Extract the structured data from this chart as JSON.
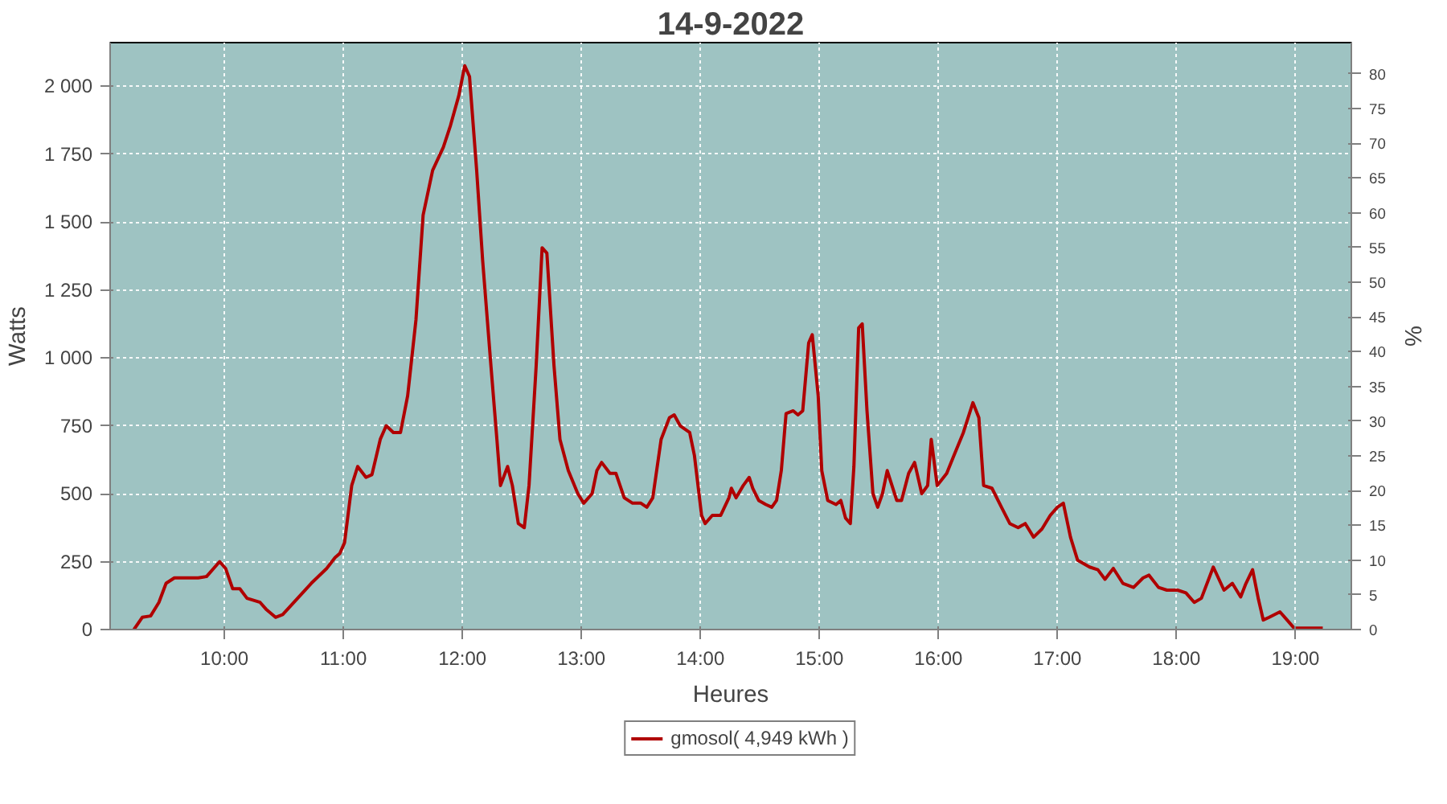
{
  "chart_data": {
    "type": "line",
    "title": "14-9-2022",
    "xlabel": "Heures",
    "ylabel": "Watts",
    "y2label": "%",
    "xlim": [
      9.04,
      19.47
    ],
    "xticks": [
      {
        "value": 10,
        "label": "10:00"
      },
      {
        "value": 11,
        "label": "11:00"
      },
      {
        "value": 12,
        "label": "12:00"
      },
      {
        "value": 13,
        "label": "13:00"
      },
      {
        "value": 14,
        "label": "14:00"
      },
      {
        "value": 15,
        "label": "15:00"
      },
      {
        "value": 16,
        "label": "16:00"
      },
      {
        "value": 17,
        "label": "17:00"
      },
      {
        "value": 18,
        "label": "18:00"
      },
      {
        "value": 19,
        "label": "19:00"
      }
    ],
    "ylim": [
      0,
      2160
    ],
    "yticks": [
      0,
      250,
      500,
      750,
      {
        "value": 1000,
        "label": "1 000"
      },
      {
        "value": 1250,
        "label": "1 250"
      },
      {
        "value": 1500,
        "label": "1 500"
      },
      {
        "value": 1750,
        "label": "1 750"
      },
      {
        "value": 2000,
        "label": "2 000"
      }
    ],
    "y2lim": [
      0,
      84.5
    ],
    "y2ticks": [
      0,
      5,
      10,
      15,
      20,
      25,
      30,
      35,
      40,
      45,
      50,
      55,
      60,
      65,
      70,
      75,
      80
    ],
    "grid": true,
    "legend": "bottom",
    "marker": "none",
    "line_style": "solid",
    "series": [
      {
        "name": "gmosol( 4,949 kWh )",
        "color": "#b00000",
        "x": [
          9.24,
          9.31,
          9.38,
          9.45,
          9.51,
          9.58,
          9.78,
          9.85,
          9.96,
          10.01,
          10.07,
          10.13,
          10.19,
          10.3,
          10.35,
          10.43,
          10.49,
          10.73,
          10.86,
          10.93,
          10.97,
          11.01,
          11.07,
          11.12,
          11.19,
          11.24,
          11.31,
          11.36,
          11.42,
          11.48,
          11.54,
          11.61,
          11.67,
          11.75,
          11.84,
          11.9,
          11.97,
          12.02,
          12.06,
          12.12,
          12.17,
          12.24,
          12.29,
          12.32,
          12.38,
          12.42,
          12.47,
          12.52,
          12.56,
          12.62,
          12.67,
          12.71,
          12.77,
          12.82,
          12.89,
          12.97,
          13.02,
          13.09,
          13.13,
          13.17,
          13.24,
          13.29,
          13.36,
          13.43,
          13.5,
          13.55,
          13.6,
          13.67,
          13.74,
          13.78,
          13.83,
          13.91,
          13.95,
          14.01,
          14.04,
          14.1,
          14.17,
          14.24,
          14.26,
          14.3,
          14.36,
          14.41,
          14.44,
          14.49,
          14.55,
          14.6,
          14.64,
          14.68,
          14.72,
          14.78,
          14.82,
          14.86,
          14.91,
          14.94,
          14.99,
          15.02,
          15.07,
          15.14,
          15.18,
          15.22,
          15.26,
          15.29,
          15.33,
          15.36,
          15.4,
          15.45,
          15.49,
          15.53,
          15.57,
          15.65,
          15.69,
          15.75,
          15.8,
          15.86,
          15.91,
          15.94,
          15.99,
          16.07,
          16.13,
          16.21,
          16.29,
          16.34,
          16.38,
          16.45,
          16.53,
          16.6,
          16.67,
          16.73,
          16.8,
          16.87,
          16.94,
          17.0,
          17.05,
          17.11,
          17.17,
          17.27,
          17.34,
          17.4,
          17.47,
          17.55,
          17.64,
          17.72,
          17.77,
          17.85,
          17.92,
          18.01,
          18.08,
          18.15,
          18.21,
          18.31,
          18.4,
          18.47,
          18.54,
          18.58,
          18.64,
          18.69,
          18.73,
          18.78,
          18.87,
          18.93,
          18.99,
          19.23
        ],
        "values": [
          0,
          45,
          50,
          100,
          170,
          190,
          190,
          195,
          250,
          225,
          150,
          150,
          115,
          100,
          75,
          45,
          55,
          170,
          225,
          265,
          280,
          320,
          530,
          600,
          560,
          570,
          700,
          750,
          725,
          725,
          860,
          1140,
          1525,
          1690,
          1775,
          1855,
          1965,
          2075,
          2035,
          1690,
          1360,
          970,
          700,
          530,
          600,
          530,
          390,
          375,
          530,
          970,
          1405,
          1385,
          970,
          700,
          585,
          500,
          465,
          500,
          585,
          615,
          575,
          575,
          485,
          465,
          465,
          450,
          485,
          700,
          780,
          790,
          750,
          725,
          640,
          420,
          390,
          420,
          420,
          485,
          520,
          485,
          530,
          560,
          520,
          475,
          460,
          450,
          475,
          585,
          795,
          805,
          790,
          805,
          1055,
          1085,
          860,
          585,
          475,
          460,
          475,
          410,
          390,
          600,
          1110,
          1125,
          805,
          500,
          450,
          500,
          585,
          475,
          475,
          575,
          615,
          500,
          530,
          700,
          530,
          575,
          640,
          725,
          835,
          780,
          530,
          520,
          450,
          390,
          375,
          390,
          340,
          370,
          420,
          450,
          465,
          340,
          255,
          230,
          220,
          185,
          225,
          170,
          155,
          190,
          200,
          155,
          145,
          145,
          135,
          100,
          115,
          230,
          145,
          170,
          120,
          165,
          220,
          110,
          35,
          45,
          65,
          35,
          5,
          5
        ]
      }
    ]
  }
}
